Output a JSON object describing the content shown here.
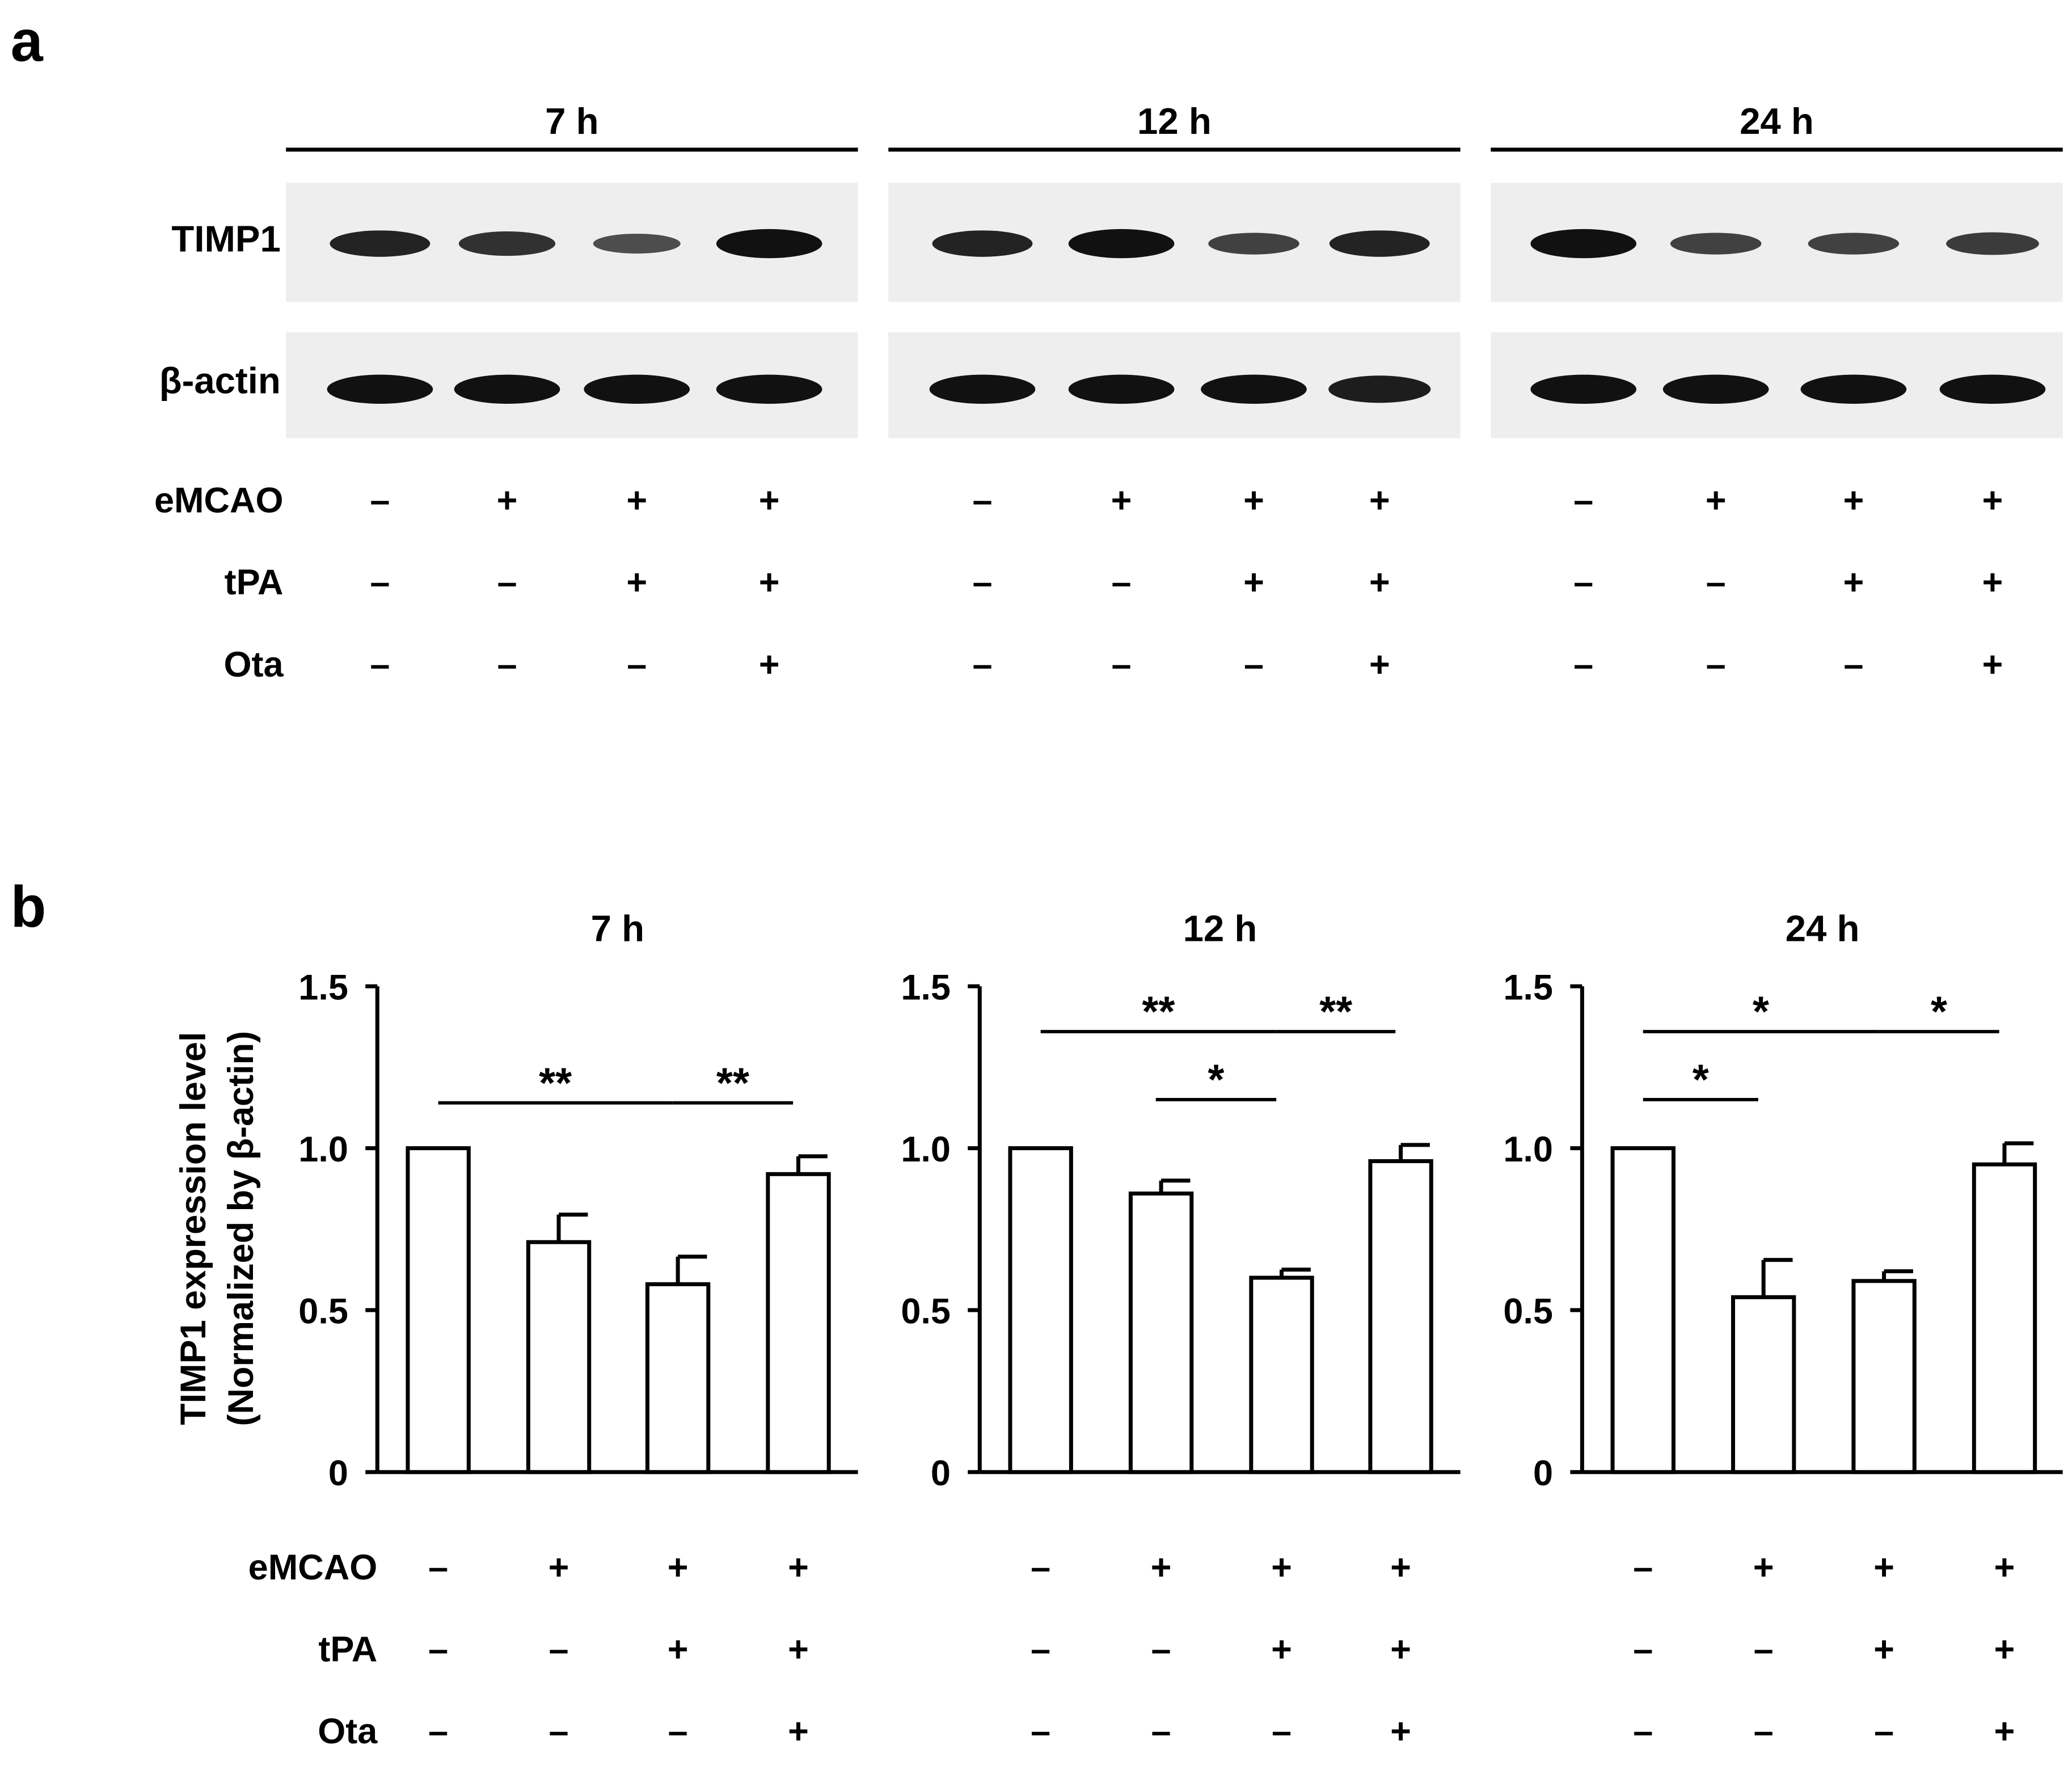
{
  "panel_a": {
    "letter": "a",
    "times": [
      "7 h",
      "12 h",
      "24 h"
    ],
    "row_labels": [
      "TIMP1",
      "β-actin"
    ],
    "treatments": [
      {
        "label": "eMCAO",
        "signs": [
          "–",
          "+",
          "+",
          "+"
        ]
      },
      {
        "label": "tPA",
        "signs": [
          "–",
          "–",
          "+",
          "+"
        ]
      },
      {
        "label": "Ota",
        "signs": [
          "–",
          "–",
          "–",
          "+"
        ]
      }
    ],
    "blot_colors": {
      "background": "#eeeeee",
      "band": "#111111"
    },
    "timp1_band_intensity": [
      [
        0.85,
        0.75,
        0.5,
        1.0
      ],
      [
        0.85,
        1.0,
        0.6,
        0.85
      ],
      [
        1.0,
        0.6,
        0.6,
        0.65
      ]
    ],
    "actin_band_intensity": [
      [
        1.0,
        1.0,
        1.0,
        1.0
      ],
      [
        1.0,
        1.0,
        1.0,
        0.9
      ],
      [
        1.0,
        1.0,
        1.0,
        1.0
      ]
    ]
  },
  "panel_b": {
    "letter": "b",
    "ylabel_lines": [
      "TIMP1 expression level",
      "(Normalized by β-actin)"
    ],
    "treatments": [
      {
        "label": "eMCAO",
        "signs": [
          "–",
          "+",
          "+",
          "+"
        ]
      },
      {
        "label": "tPA",
        "signs": [
          "–",
          "–",
          "+",
          "+"
        ]
      },
      {
        "label": "Ota",
        "signs": [
          "–",
          "–",
          "–",
          "+"
        ]
      }
    ]
  },
  "chart_data": [
    {
      "type": "bar",
      "title": "7 h",
      "values": [
        1.0,
        0.71,
        0.58,
        0.92
      ],
      "errors": [
        0,
        0.085,
        0.085,
        0.055
      ],
      "ylim": [
        0,
        1.5
      ],
      "yticks": [
        "0",
        "0.5",
        "1.0",
        "1.5"
      ],
      "ylabel": "TIMP1 expression level (Normalized by β-actin)",
      "significance": [
        {
          "from": 1,
          "to": 3,
          "label": "**",
          "level": 1.14
        },
        {
          "from": 3,
          "to": 4,
          "label": "**",
          "level": 1.14
        }
      ]
    },
    {
      "type": "bar",
      "title": "12 h",
      "values": [
        1.0,
        0.86,
        0.6,
        0.96
      ],
      "errors": [
        0,
        0.04,
        0.025,
        0.05
      ],
      "ylim": [
        0,
        1.5
      ],
      "yticks": [
        "0",
        "0.5",
        "1.0",
        "1.5"
      ],
      "significance": [
        {
          "from": 1,
          "to": 3,
          "label": "**",
          "level": 1.36
        },
        {
          "from": 3,
          "to": 4,
          "label": "**",
          "level": 1.36
        },
        {
          "from": 2,
          "to": 3,
          "label": "*",
          "level": 1.15
        }
      ]
    },
    {
      "type": "bar",
      "title": "24 h",
      "values": [
        1.0,
        0.54,
        0.59,
        0.95
      ],
      "errors": [
        0,
        0.115,
        0.03,
        0.065
      ],
      "ylim": [
        0,
        1.5
      ],
      "yticks": [
        "0",
        "0.5",
        "1.0",
        "1.5"
      ],
      "significance": [
        {
          "from": 1,
          "to": 3,
          "label": "*",
          "level": 1.36
        },
        {
          "from": 3,
          "to": 4,
          "label": "*",
          "level": 1.36
        },
        {
          "from": 1,
          "to": 2,
          "label": "*",
          "level": 1.15
        }
      ]
    }
  ]
}
